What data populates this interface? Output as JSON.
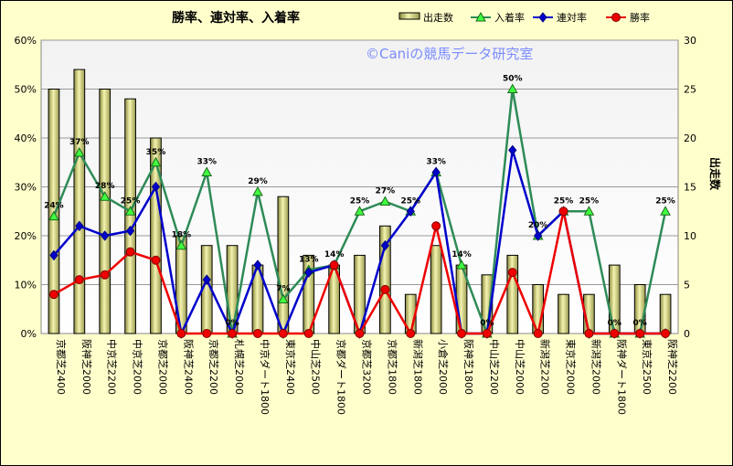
{
  "chart_data": {
    "type": "bar+line",
    "title": "勝率、連対率、入着率",
    "watermark": "©Caniの競馬データ研究室",
    "y_right_label": "出走数",
    "y_left_ticks": [
      "0%",
      "10%",
      "20%",
      "30%",
      "40%",
      "50%",
      "60%"
    ],
    "y_right_ticks": [
      "0",
      "5",
      "10",
      "15",
      "20",
      "25",
      "30"
    ],
    "ylim_left": [
      0,
      60
    ],
    "ylim_right": [
      0,
      30
    ],
    "grid": true,
    "legend_position": "top-right",
    "categories": [
      "京都芝2400",
      "阪神芝2000",
      "中京芝2200",
      "中京芝2000",
      "京都芝2000",
      "阪神芝2400",
      "京都芝2200",
      "札幌芝2000",
      "中京ダート1800",
      "東京芝2400",
      "中山芝2500",
      "京都ダート1800",
      "京都芝3200",
      "京都芝1800",
      "新潟芝1800",
      "小倉芝2000",
      "阪神芝1800",
      "中山芝2200",
      "中山芝2000",
      "新潟芝2200",
      "東京芝2000",
      "新潟芝2000",
      "阪神ダート1800",
      "東京芝2500",
      "阪神芝2200"
    ],
    "series": [
      {
        "name": "出走数",
        "kind": "bar",
        "axis": "right",
        "color": "#e0e090",
        "values": [
          25,
          27,
          25,
          24,
          20,
          10,
          9,
          9,
          7,
          14,
          8,
          7,
          8,
          11,
          4,
          9,
          7,
          6,
          8,
          5,
          4,
          4,
          7,
          5,
          4
        ]
      },
      {
        "name": "入着率",
        "kind": "line",
        "axis": "left",
        "color": "#2e8b57",
        "marker": "triangle",
        "values": [
          24,
          37,
          28,
          25,
          35,
          18,
          33,
          0,
          29,
          7,
          13,
          14,
          25,
          27,
          25,
          33,
          14,
          0,
          50,
          20,
          25,
          25,
          0,
          0,
          25
        ]
      },
      {
        "name": "連対率",
        "kind": "line",
        "axis": "left",
        "color": "#0000cc",
        "marker": "diamond",
        "values": [
          16,
          22,
          20,
          21,
          30,
          0,
          11,
          0,
          14,
          0,
          12.5,
          14,
          0,
          18,
          25,
          33,
          0,
          0,
          37.5,
          20,
          25,
          0,
          0,
          0,
          0
        ]
      },
      {
        "name": "勝率",
        "kind": "line",
        "axis": "left",
        "color": "#ee0000",
        "marker": "circle",
        "values": [
          8,
          11,
          12,
          16.7,
          15,
          0,
          0,
          0,
          0,
          0,
          0,
          14,
          0,
          9,
          0,
          22,
          0,
          0,
          12.5,
          0,
          25,
          0,
          0,
          0,
          0
        ]
      }
    ],
    "data_labels": [
      "24%",
      "37%",
      "28%",
      "25%",
      "35%",
      "18%",
      "33%",
      "0%",
      "29%",
      "7%",
      "13%",
      "14%",
      "25%",
      "27%",
      "25%",
      "33%",
      "14%",
      "0%",
      "50%",
      "20%",
      "25%",
      "25%",
      "0%",
      "0%",
      "25%"
    ]
  }
}
